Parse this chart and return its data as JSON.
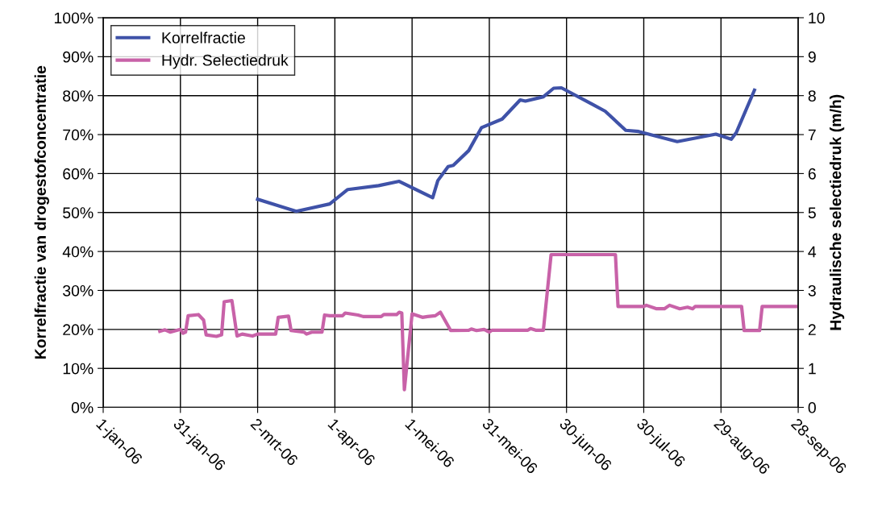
{
  "chart_data": {
    "type": "line",
    "ylabel": "Korrelfractie van drogestofconcentratie",
    "y2label": "Hydraulische selectiedruk (m/h)",
    "xlim": [
      "2006-01-01",
      "2006-09-28"
    ],
    "xticks": [
      {
        "value": "2006-01-01",
        "label": "1-jan-06"
      },
      {
        "value": "2006-01-31",
        "label": "31-jan-06"
      },
      {
        "value": "2006-03-02",
        "label": "2-mrt-06"
      },
      {
        "value": "2006-04-01",
        "label": "1-apr-06"
      },
      {
        "value": "2006-05-01",
        "label": "1-mei-06"
      },
      {
        "value": "2006-05-31",
        "label": "31-mei-06"
      },
      {
        "value": "2006-06-30",
        "label": "30-jun-06"
      },
      {
        "value": "2006-07-30",
        "label": "30-jul-06"
      },
      {
        "value": "2006-08-29",
        "label": "29-aug-06"
      },
      {
        "value": "2006-09-28",
        "label": "28-sep-06"
      }
    ],
    "ylim": [
      0,
      100
    ],
    "yticks": [
      {
        "value": 0,
        "label": "0%"
      },
      {
        "value": 10,
        "label": "10%"
      },
      {
        "value": 20,
        "label": "20%"
      },
      {
        "value": 30,
        "label": "30%"
      },
      {
        "value": 40,
        "label": "40%"
      },
      {
        "value": 50,
        "label": "50%"
      },
      {
        "value": 60,
        "label": "60%"
      },
      {
        "value": 70,
        "label": "70%"
      },
      {
        "value": 80,
        "label": "80%"
      },
      {
        "value": 90,
        "label": "90%"
      },
      {
        "value": 100,
        "label": "100%"
      }
    ],
    "y2lim": [
      0,
      10
    ],
    "y2ticks": [
      0,
      1,
      2,
      3,
      4,
      5,
      6,
      7,
      8,
      9,
      10
    ],
    "grid": true,
    "legend": "top left",
    "marker": "none",
    "line_style": "solid",
    "series": [
      {
        "name": "Korrelfractie",
        "color": "#3f52a8",
        "x": [
          "2006-03-02",
          "2006-03-17",
          "2006-03-30",
          "2006-04-06",
          "2006-04-18",
          "2006-04-26",
          "2006-05-09",
          "2006-05-11",
          "2006-05-15",
          "2006-05-17",
          "2006-05-23",
          "2006-05-28",
          "2006-06-05",
          "2006-06-12",
          "2006-06-14",
          "2006-06-21",
          "2006-06-25",
          "2006-06-28",
          "2006-07-10",
          "2006-07-15",
          "2006-07-23",
          "2006-07-28",
          "2006-08-12",
          "2006-08-27",
          "2006-09-02",
          "2006-09-04",
          "2006-09-11"
        ],
        "values": [
          53.4,
          50.3,
          52.2,
          55.9,
          56.9,
          58.0,
          53.8,
          58.2,
          61.8,
          62.1,
          65.9,
          71.8,
          74.0,
          78.9,
          78.6,
          79.7,
          81.9,
          82.0,
          77.8,
          76.0,
          71.1,
          70.8,
          68.2,
          70.1,
          68.8,
          70.6,
          81.4
        ]
      },
      {
        "name": "Hydr. Selectiedruk",
        "color": "#c862a8",
        "axis": "y2",
        "x": [
          "2006-01-23",
          "2006-01-25",
          "2006-01-27",
          "2006-01-31",
          "2006-02-01",
          "2006-02-02",
          "2006-02-03",
          "2006-02-07",
          "2006-02-09",
          "2006-02-10",
          "2006-02-14",
          "2006-02-16",
          "2006-02-17",
          "2006-02-20",
          "2006-02-22",
          "2006-02-24",
          "2006-02-28",
          "2006-03-02",
          "2006-03-09",
          "2006-03-10",
          "2006-03-14",
          "2006-03-15",
          "2006-03-20",
          "2006-03-21",
          "2006-03-23",
          "2006-03-27",
          "2006-03-28",
          "2006-03-30",
          "2006-04-04",
          "2006-04-05",
          "2006-04-10",
          "2006-04-12",
          "2006-04-19",
          "2006-04-20",
          "2006-04-25",
          "2006-04-26",
          "2006-04-27",
          "2006-04-28",
          "2006-05-01",
          "2006-05-05",
          "2006-05-07",
          "2006-05-10",
          "2006-05-12",
          "2006-05-16",
          "2006-05-23",
          "2006-05-24",
          "2006-05-26",
          "2006-05-29",
          "2006-05-31",
          "2006-06-01",
          "2006-06-15",
          "2006-06-16",
          "2006-06-18",
          "2006-06-21",
          "2006-06-24",
          "2006-07-19",
          "2006-07-20",
          "2006-07-30",
          "2006-07-31",
          "2006-08-04",
          "2006-08-07",
          "2006-08-09",
          "2006-08-13",
          "2006-08-16",
          "2006-08-18",
          "2006-08-19",
          "2006-09-06",
          "2006-09-07",
          "2006-09-13",
          "2006-09-14",
          "2006-09-27"
        ],
        "values": [
          1.95,
          1.99,
          1.93,
          2.0,
          1.9,
          1.93,
          2.35,
          2.38,
          2.24,
          1.86,
          1.82,
          1.86,
          2.71,
          2.74,
          1.83,
          1.88,
          1.83,
          1.88,
          1.88,
          2.31,
          2.34,
          1.97,
          1.93,
          1.88,
          1.93,
          1.93,
          2.37,
          2.35,
          2.35,
          2.42,
          2.37,
          2.33,
          2.33,
          2.38,
          2.38,
          2.44,
          2.42,
          0.45,
          2.4,
          2.31,
          2.33,
          2.35,
          2.44,
          1.97,
          1.98,
          2.01,
          1.97,
          2.0,
          1.93,
          1.98,
          1.98,
          2.02,
          1.98,
          1.98,
          3.92,
          3.92,
          2.59,
          2.59,
          2.62,
          2.53,
          2.53,
          2.62,
          2.53,
          2.57,
          2.53,
          2.59,
          2.59,
          1.97,
          1.97,
          2.59,
          2.59
        ]
      }
    ]
  }
}
